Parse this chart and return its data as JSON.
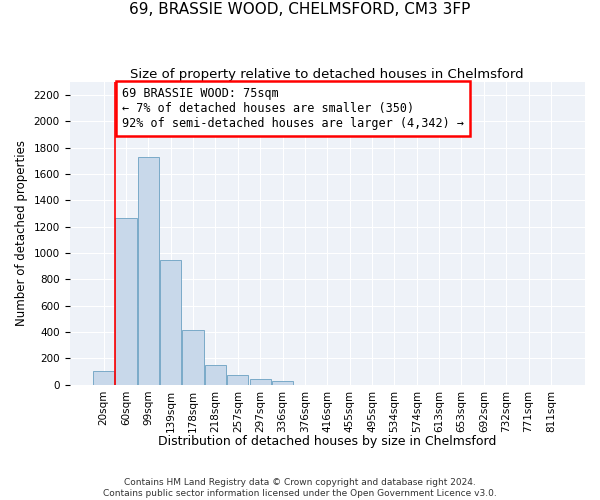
{
  "title": "69, BRASSIE WOOD, CHELMSFORD, CM3 3FP",
  "subtitle": "Size of property relative to detached houses in Chelmsford",
  "xlabel": "Distribution of detached houses by size in Chelmsford",
  "ylabel": "Number of detached properties",
  "footer_line1": "Contains HM Land Registry data © Crown copyright and database right 2024.",
  "footer_line2": "Contains public sector information licensed under the Open Government Licence v3.0.",
  "bar_labels": [
    "20sqm",
    "60sqm",
    "99sqm",
    "139sqm",
    "178sqm",
    "218sqm",
    "257sqm",
    "297sqm",
    "336sqm",
    "376sqm",
    "416sqm",
    "455sqm",
    "495sqm",
    "534sqm",
    "574sqm",
    "613sqm",
    "653sqm",
    "692sqm",
    "732sqm",
    "771sqm",
    "811sqm"
  ],
  "bar_values": [
    108,
    1265,
    1730,
    950,
    415,
    150,
    75,
    45,
    25,
    0,
    0,
    0,
    0,
    0,
    0,
    0,
    0,
    0,
    0,
    0,
    0
  ],
  "bar_color": "#c8d8ea",
  "bar_edge_color": "#7aaac8",
  "annotation_text": "69 BRASSIE WOOD: 75sqm\n← 7% of detached houses are smaller (350)\n92% of semi-detached houses are larger (4,342) →",
  "vline_x": 0.525,
  "vline_color": "red",
  "annotation_box_color": "red",
  "ylim": [
    0,
    2300
  ],
  "ytick_max": 2200,
  "background_color": "#eef2f8",
  "grid_color": "#ffffff",
  "title_fontsize": 11,
  "subtitle_fontsize": 9.5,
  "ylabel_fontsize": 8.5,
  "xlabel_fontsize": 9,
  "tick_fontsize": 7.5,
  "annotation_fontsize": 8.5
}
